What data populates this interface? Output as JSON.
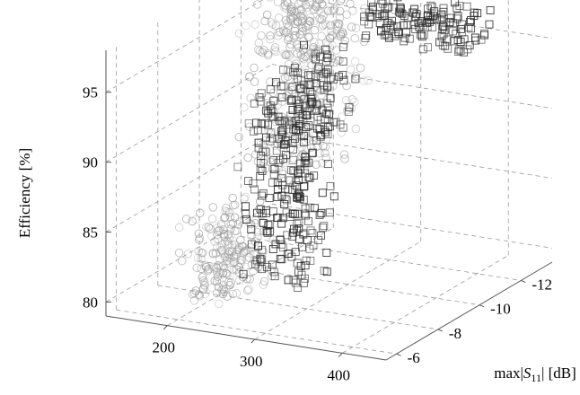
{
  "chart_data": {
    "type": "scatter3d",
    "title": "",
    "xlabel": "",
    "ylabel_parts": {
      "prefix": "max|",
      "symbol": "S",
      "subscript": "11",
      "suffix": "| [dB]"
    },
    "zlabel": "Efficiency [%]",
    "x_ticks": [
      "400",
      "300",
      "200"
    ],
    "y_ticks": [
      "-6",
      "-8",
      "-10",
      "-12"
    ],
    "z_ticks": [
      "80",
      "85",
      "90",
      "95"
    ],
    "xlim": [
      130,
      450
    ],
    "ylim": [
      -5.5,
      -13.5
    ],
    "zlim": [
      79,
      98
    ],
    "grid": true,
    "colors": {
      "squares": "#2a2a2a",
      "circles": "#9a9a9a",
      "grid": "#9a9a9a",
      "axis": "#555555"
    },
    "series": [
      {
        "marker": "square",
        "clusters": [
          {
            "x_range": [
              230,
              300
            ],
            "y_range": [
              -7.5,
              -9.5
            ],
            "z_range": [
              80.5,
              93.5
            ],
            "count": 240
          },
          {
            "x_range": [
              270,
              400
            ],
            "y_range": [
              -11.5,
              -12.8
            ],
            "z_range": [
              94.5,
              97.5
            ],
            "count": 150
          },
          {
            "x_range": [
              245,
              300
            ],
            "y_range": [
              -8.5,
              -10.5
            ],
            "z_range": [
              90,
              95.5
            ],
            "count": 90
          }
        ]
      },
      {
        "marker": "circle",
        "clusters": [
          {
            "x_range": [
              195,
              255
            ],
            "y_range": [
              -6.2,
              -8.5
            ],
            "z_range": [
              80,
              86
            ],
            "count": 200
          },
          {
            "x_range": [
              195,
              260
            ],
            "y_range": [
              -9,
              -12.8
            ],
            "z_range": [
              86,
              97.5
            ],
            "count": 260
          },
          {
            "x_range": [
              170,
              240
            ],
            "y_range": [
              -11,
              -13
            ],
            "z_range": [
              93,
              97.5
            ],
            "count": 120
          }
        ]
      }
    ]
  }
}
